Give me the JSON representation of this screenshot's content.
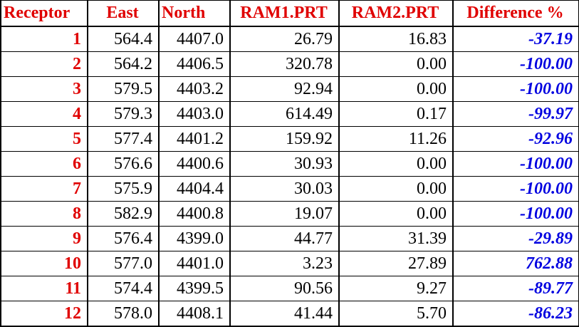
{
  "table": {
    "headers": [
      "Receptor",
      "East",
      "North",
      "RAM1.PRT",
      "RAM2.PRT",
      "Difference %"
    ],
    "rows": [
      [
        "1",
        "564.4",
        "4407.0",
        "26.79",
        "16.83",
        "-37.19"
      ],
      [
        "2",
        "564.2",
        "4406.5",
        "320.78",
        "0.00",
        "-100.00"
      ],
      [
        "3",
        "579.5",
        "4403.2",
        "92.94",
        "0.00",
        "-100.00"
      ],
      [
        "4",
        "579.3",
        "4403.0",
        "614.49",
        "0.17",
        "-99.97"
      ],
      [
        "5",
        "577.4",
        "4401.2",
        "159.92",
        "11.26",
        "-92.96"
      ],
      [
        "6",
        "576.6",
        "4400.6",
        "30.93",
        "0.00",
        "-100.00"
      ],
      [
        "7",
        "575.9",
        "4404.4",
        "30.03",
        "0.00",
        "-100.00"
      ],
      [
        "8",
        "582.9",
        "4400.8",
        "19.07",
        "0.00",
        "-100.00"
      ],
      [
        "9",
        "576.4",
        "4399.0",
        "44.77",
        "31.39",
        "-29.89"
      ],
      [
        "10",
        "577.0",
        "4401.0",
        "3.23",
        "27.89",
        "762.88"
      ],
      [
        "11",
        "574.4",
        "4399.5",
        "90.56",
        "9.27",
        "-89.77"
      ],
      [
        "12",
        "578.0",
        "4408.1",
        "41.44",
        "5.70",
        "-86.23"
      ]
    ]
  },
  "colors": {
    "header_text": "#e00000",
    "receptor_text": "#e00000",
    "value_text": "#000000",
    "difference_text": "#0000e0",
    "grid_lines": "#000000"
  }
}
